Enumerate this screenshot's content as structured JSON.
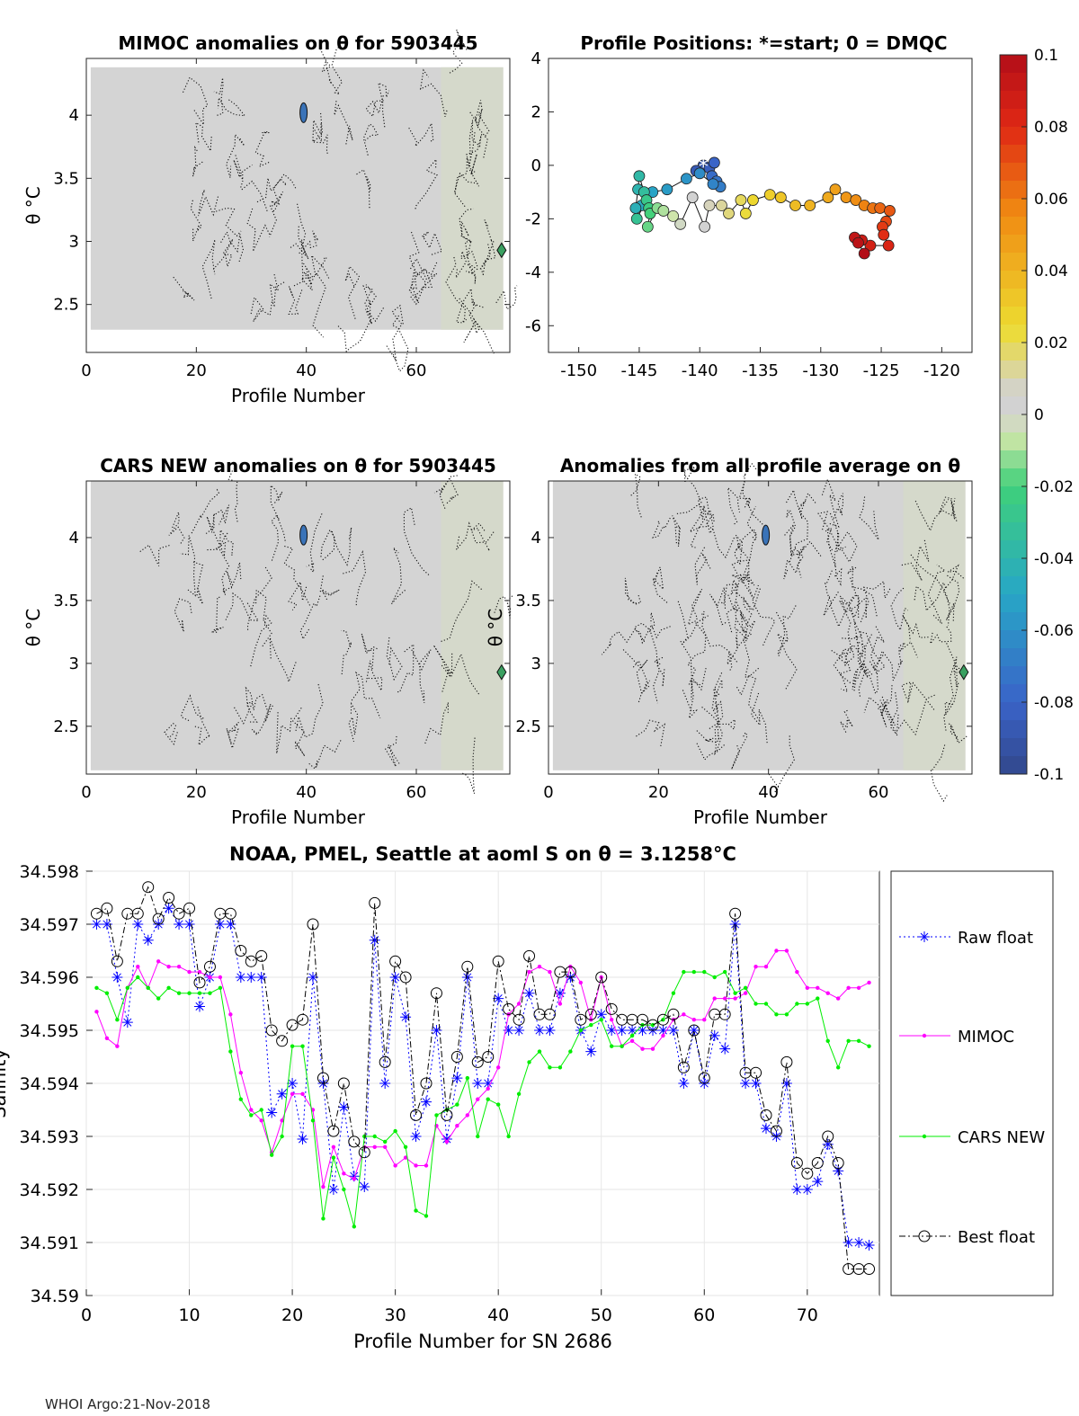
{
  "footer": "WHOI Argo:21-Nov-2018",
  "chart_data": [
    {
      "type": "heatmap",
      "title": "MIMOC anomalies on θ  for 5903445",
      "xlabel": "Profile Number",
      "ylabel": "θ °C",
      "xlim": [
        0,
        77
      ],
      "ylim": [
        2.12,
        4.45
      ],
      "xticks": [
        "0",
        "20",
        "40",
        "60"
      ],
      "yticks": [
        "2.5",
        "3",
        "3.5",
        "4"
      ],
      "xtick_values": [
        0,
        20,
        40,
        60
      ],
      "ytick_values": [
        2.5,
        3,
        3.5,
        4
      ]
    },
    {
      "type": "scatter",
      "title": "Profile Positions: *=start; 0 = DMQC",
      "xlim": [
        -152.5,
        -117.5
      ],
      "ylim": [
        -7,
        4
      ],
      "xticks": [
        "-150",
        "-145",
        "-140",
        "-135",
        "-130",
        "-125",
        "-120"
      ],
      "yticks": [
        "-6",
        "-4",
        "-2",
        "0",
        "2",
        "4"
      ],
      "xtick_values": [
        -150,
        -145,
        -140,
        -135,
        -130,
        -125,
        -120
      ],
      "ytick_values": [
        -6,
        -4,
        -2,
        0,
        2,
        4
      ],
      "points": [
        [
          -139.7,
          0.0
        ],
        [
          -140.3,
          -0.2
        ],
        [
          -139.2,
          -0.1
        ],
        [
          -138.8,
          0.1
        ],
        [
          -139.0,
          -0.4
        ],
        [
          -138.6,
          -0.6
        ],
        [
          -138.3,
          -0.8
        ],
        [
          -138.9,
          -0.7
        ],
        [
          -140.0,
          -0.3
        ],
        [
          -141.1,
          -0.5
        ],
        [
          -142.7,
          -0.9
        ],
        [
          -143.9,
          -1.0
        ],
        [
          -144.8,
          -1.5
        ],
        [
          -145.3,
          -1.6
        ],
        [
          -145.1,
          -0.9
        ],
        [
          -145.0,
          -0.4
        ],
        [
          -144.6,
          -1.0
        ],
        [
          -145.2,
          -2.0
        ],
        [
          -144.4,
          -1.3
        ],
        [
          -144.2,
          -1.6
        ],
        [
          -144.1,
          -1.8
        ],
        [
          -144.3,
          -2.3
        ],
        [
          -143.5,
          -1.6
        ],
        [
          -143.0,
          -1.7
        ],
        [
          -142.2,
          -1.9
        ],
        [
          -141.6,
          -2.2
        ],
        [
          -140.6,
          -1.2
        ],
        [
          -139.6,
          -2.3
        ],
        [
          -139.2,
          -1.5
        ],
        [
          -138.2,
          -1.5
        ],
        [
          -137.6,
          -1.8
        ],
        [
          -136.6,
          -1.3
        ],
        [
          -136.2,
          -1.8
        ],
        [
          -135.6,
          -1.3
        ],
        [
          -134.2,
          -1.1
        ],
        [
          -133.3,
          -1.2
        ],
        [
          -132.1,
          -1.5
        ],
        [
          -130.9,
          -1.5
        ],
        [
          -129.4,
          -1.2
        ],
        [
          -128.8,
          -0.9
        ],
        [
          -127.9,
          -1.2
        ],
        [
          -127.1,
          -1.3
        ],
        [
          -126.4,
          -1.5
        ],
        [
          -125.7,
          -1.6
        ],
        [
          -125.1,
          -1.6
        ],
        [
          -124.3,
          -1.7
        ],
        [
          -124.6,
          -2.1
        ],
        [
          -124.9,
          -2.3
        ],
        [
          -124.8,
          -2.6
        ],
        [
          -124.4,
          -3.0
        ],
        [
          -125.9,
          -3.0
        ],
        [
          -126.6,
          -2.8
        ],
        [
          -127.2,
          -2.7
        ],
        [
          -126.9,
          -2.9
        ],
        [
          -126.4,
          -3.3
        ]
      ]
    },
    {
      "type": "heatmap",
      "title": "CARS NEW anomalies on θ for 5903445",
      "xlabel": "Profile Number",
      "ylabel": "θ °C",
      "xlim": [
        0,
        77
      ],
      "ylim": [
        2.12,
        4.45
      ],
      "xticks": [
        "0",
        "20",
        "40",
        "60"
      ],
      "yticks": [
        "2.5",
        "3",
        "3.5",
        "4"
      ],
      "xtick_values": [
        0,
        20,
        40,
        60
      ],
      "ytick_values": [
        2.5,
        3,
        3.5,
        4
      ]
    },
    {
      "type": "heatmap",
      "title": "Anomalies from all profile average on θ",
      "xlabel": "Profile Number",
      "ylabel": "θ °C",
      "xlim": [
        0,
        77
      ],
      "ylim": [
        2.12,
        4.45
      ],
      "xticks": [
        "0",
        "20",
        "40",
        "60"
      ],
      "yticks": [
        "2.5",
        "3",
        "3.5",
        "4"
      ],
      "xtick_values": [
        0,
        20,
        40,
        60
      ],
      "ytick_values": [
        2.5,
        3,
        3.5,
        4
      ]
    },
    {
      "type": "colorbar",
      "ticks": [
        "0.1",
        "0.08",
        "0.06",
        "0.04",
        "0.02",
        "0",
        "-0.02",
        "-0.04",
        "-0.06",
        "-0.08",
        "-0.1"
      ],
      "tick_values": [
        0.1,
        0.08,
        0.06,
        0.04,
        0.02,
        0,
        -0.02,
        -0.04,
        -0.06,
        -0.08,
        -0.1
      ]
    },
    {
      "type": "line",
      "title": "NOAA, PMEL, Seattle at aoml S on θ = 3.1258°C",
      "xlabel": "Profile Number for SN 2686",
      "ylabel": "Salinity",
      "xlim": [
        0,
        77
      ],
      "ylim": [
        34.59,
        34.598
      ],
      "xticks": [
        "0",
        "10",
        "20",
        "30",
        "40",
        "50",
        "60",
        "70"
      ],
      "yticks": [
        "34.59",
        "34.591",
        "34.592",
        "34.593",
        "34.594",
        "34.595",
        "34.596",
        "34.597",
        "34.598"
      ],
      "xtick_values": [
        0,
        10,
        20,
        30,
        40,
        50,
        60,
        70
      ],
      "ytick_values": [
        34.59,
        34.591,
        34.592,
        34.593,
        34.594,
        34.595,
        34.596,
        34.597,
        34.598
      ],
      "x": [
        1,
        2,
        3,
        4,
        5,
        6,
        7,
        8,
        9,
        10,
        11,
        12,
        13,
        14,
        15,
        16,
        17,
        18,
        19,
        20,
        21,
        22,
        23,
        24,
        25,
        26,
        27,
        28,
        29,
        30,
        31,
        32,
        33,
        34,
        35,
        36,
        37,
        38,
        39,
        40,
        41,
        42,
        43,
        44,
        45,
        46,
        47,
        48,
        49,
        50,
        51,
        52,
        53,
        54,
        55,
        56,
        57,
        58,
        59,
        60,
        61,
        62,
        63,
        64,
        65,
        66,
        67,
        68,
        69,
        70,
        71,
        72,
        73,
        74,
        75,
        76
      ],
      "series": [
        {
          "name": "Raw float",
          "color": "#0000ff",
          "values": [
            34.597,
            34.597,
            34.596,
            34.59515,
            34.597,
            34.5967,
            34.597,
            34.5973,
            34.597,
            34.597,
            34.59545,
            34.596,
            34.597,
            34.597,
            34.596,
            34.596,
            34.596,
            34.59345,
            34.5938,
            34.594,
            34.59295,
            34.596,
            34.594,
            34.592,
            34.59355,
            34.59225,
            34.59205,
            34.5967,
            34.594,
            34.596,
            34.59525,
            34.593,
            34.59365,
            34.595,
            34.59295,
            34.5941,
            34.596,
            34.594,
            34.594,
            34.5956,
            34.595,
            34.595,
            34.5957,
            34.595,
            34.595,
            34.5957,
            34.596,
            34.595,
            34.5946,
            34.5953,
            34.595,
            34.595,
            34.595,
            34.595,
            34.595,
            34.595,
            34.595,
            34.594,
            34.595,
            34.594,
            34.5949,
            34.59465,
            34.597,
            34.594,
            34.594,
            34.59315,
            34.593,
            34.594,
            34.592,
            34.592,
            34.59215,
            34.59285,
            34.59235,
            34.591,
            34.591,
            34.59095
          ]
        },
        {
          "name": "MIMOC",
          "color": "#ff00ff",
          "values": [
            34.59535,
            34.59485,
            34.5947,
            34.5958,
            34.5962,
            34.5958,
            34.5963,
            34.5962,
            34.5962,
            34.5961,
            34.5961,
            34.596,
            34.596,
            34.5953,
            34.5942,
            34.5935,
            34.5933,
            34.5927,
            34.5933,
            34.5938,
            34.5938,
            34.5935,
            34.59205,
            34.5928,
            34.5923,
            34.5922,
            34.5928,
            34.5928,
            34.5928,
            34.59245,
            34.5926,
            34.59245,
            34.59245,
            34.5932,
            34.5929,
            34.5932,
            34.5934,
            34.5937,
            34.5939,
            34.5943,
            34.5953,
            34.5955,
            34.5961,
            34.5962,
            34.5961,
            34.5955,
            34.5962,
            34.5959,
            34.5952,
            34.596,
            34.5952,
            34.5947,
            34.5948,
            34.59465,
            34.59465,
            34.5949,
            34.5952,
            34.5953,
            34.5952,
            34.5952,
            34.5956,
            34.5956,
            34.5956,
            34.5957,
            34.5962,
            34.5962,
            34.5965,
            34.5965,
            34.5961,
            34.5958,
            34.5958,
            34.5957,
            34.5956,
            34.5958,
            34.5958,
            34.5959
          ]
        },
        {
          "name": "CARS NEW",
          "color": "#00ee00",
          "values": [
            34.5958,
            34.5957,
            34.5952,
            34.5958,
            34.596,
            34.5958,
            34.5956,
            34.5958,
            34.5957,
            34.5957,
            34.5957,
            34.5957,
            34.5958,
            34.5946,
            34.5937,
            34.5934,
            34.5935,
            34.59265,
            34.593,
            34.5947,
            34.5947,
            34.5933,
            34.59145,
            34.5926,
            34.592,
            34.5913,
            34.593,
            34.593,
            34.5929,
            34.5931,
            34.5928,
            34.5916,
            34.5915,
            34.5934,
            34.5935,
            34.5936,
            34.5941,
            34.593,
            34.5937,
            34.5936,
            34.593,
            34.5938,
            34.5944,
            34.5946,
            34.5943,
            34.5943,
            34.5946,
            34.595,
            34.5951,
            34.5952,
            34.5947,
            34.5947,
            34.5949,
            34.5951,
            34.5951,
            34.5952,
            34.5957,
            34.5961,
            34.5961,
            34.5961,
            34.596,
            34.5961,
            34.5957,
            34.5958,
            34.5955,
            34.5955,
            34.5953,
            34.5953,
            34.5955,
            34.5955,
            34.5956,
            34.5948,
            34.5943,
            34.5948,
            34.5948,
            34.5947
          ]
        },
        {
          "name": "Best float",
          "color": "#000000",
          "values": [
            34.5972,
            34.5973,
            34.5963,
            34.5972,
            34.5972,
            34.5977,
            34.5971,
            34.5975,
            34.5972,
            34.5973,
            34.5959,
            34.5962,
            34.5972,
            34.5972,
            34.5965,
            34.5963,
            34.5964,
            34.595,
            34.5948,
            34.5951,
            34.5952,
            34.597,
            34.5941,
            34.5931,
            34.594,
            34.5929,
            34.5927,
            34.5974,
            34.5944,
            34.5963,
            34.596,
            34.5934,
            34.594,
            34.5957,
            34.5934,
            34.5945,
            34.5962,
            34.5944,
            34.5945,
            34.5963,
            34.5954,
            34.5952,
            34.5964,
            34.5953,
            34.5953,
            34.5961,
            34.5961,
            34.5952,
            34.5953,
            34.596,
            34.5954,
            34.5952,
            34.5952,
            34.5952,
            34.5951,
            34.5952,
            34.5953,
            34.5943,
            34.595,
            34.5941,
            34.5953,
            34.5953,
            34.5972,
            34.5942,
            34.5942,
            34.5934,
            34.5931,
            34.5944,
            34.5925,
            34.5923,
            34.5925,
            34.593,
            34.5925,
            34.5905,
            34.5905,
            34.5905
          ]
        }
      ]
    }
  ]
}
